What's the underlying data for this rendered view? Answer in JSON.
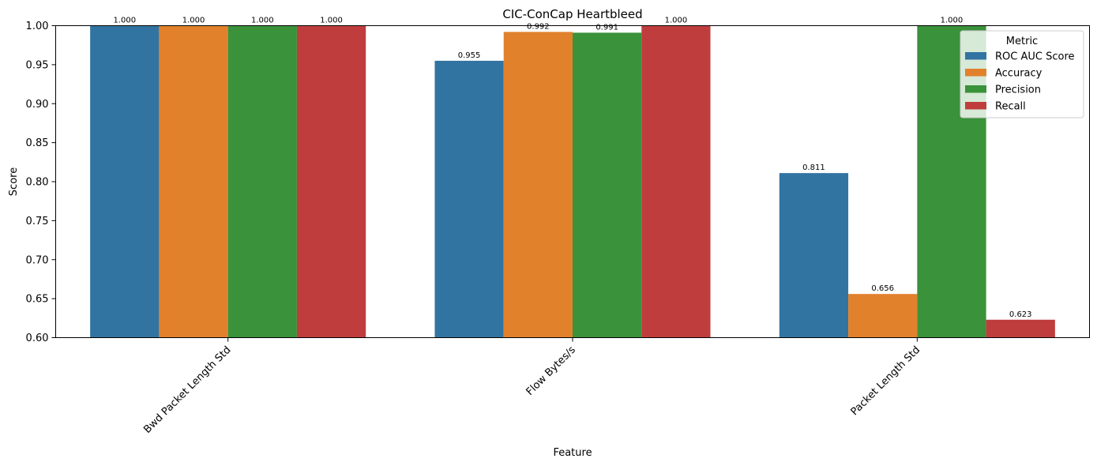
{
  "chart_data": {
    "type": "bar",
    "title": "CIC-ConCap Heartbleed",
    "xlabel": "Feature",
    "ylabel": "Score",
    "ylim": [
      0.6,
      1.0
    ],
    "yticks": [
      "0.60",
      "0.65",
      "0.70",
      "0.75",
      "0.80",
      "0.85",
      "0.90",
      "0.95",
      "1.00"
    ],
    "categories": [
      "Bwd Packet Length Std",
      "Flow Bytes/s",
      "Packet Length Std"
    ],
    "legend_title": "Metric",
    "legend_position": "top-right",
    "grid": false,
    "series": [
      {
        "name": "ROC AUC Score",
        "color": "#3274a1",
        "values": [
          1.0,
          0.955,
          0.811
        ],
        "labels": [
          "1.000",
          "0.955",
          "0.811"
        ]
      },
      {
        "name": "Accuracy",
        "color": "#e1812c",
        "values": [
          1.0,
          0.992,
          0.656
        ],
        "labels": [
          "1.000",
          "0.992",
          "0.656"
        ]
      },
      {
        "name": "Precision",
        "color": "#3a923a",
        "values": [
          1.0,
          0.991,
          1.0
        ],
        "labels": [
          "1.000",
          "0.991",
          "1.000"
        ]
      },
      {
        "name": "Recall",
        "color": "#c03d3e",
        "values": [
          1.0,
          1.0,
          0.623
        ],
        "labels": [
          "1.000",
          "1.000",
          "0.623"
        ]
      }
    ]
  }
}
